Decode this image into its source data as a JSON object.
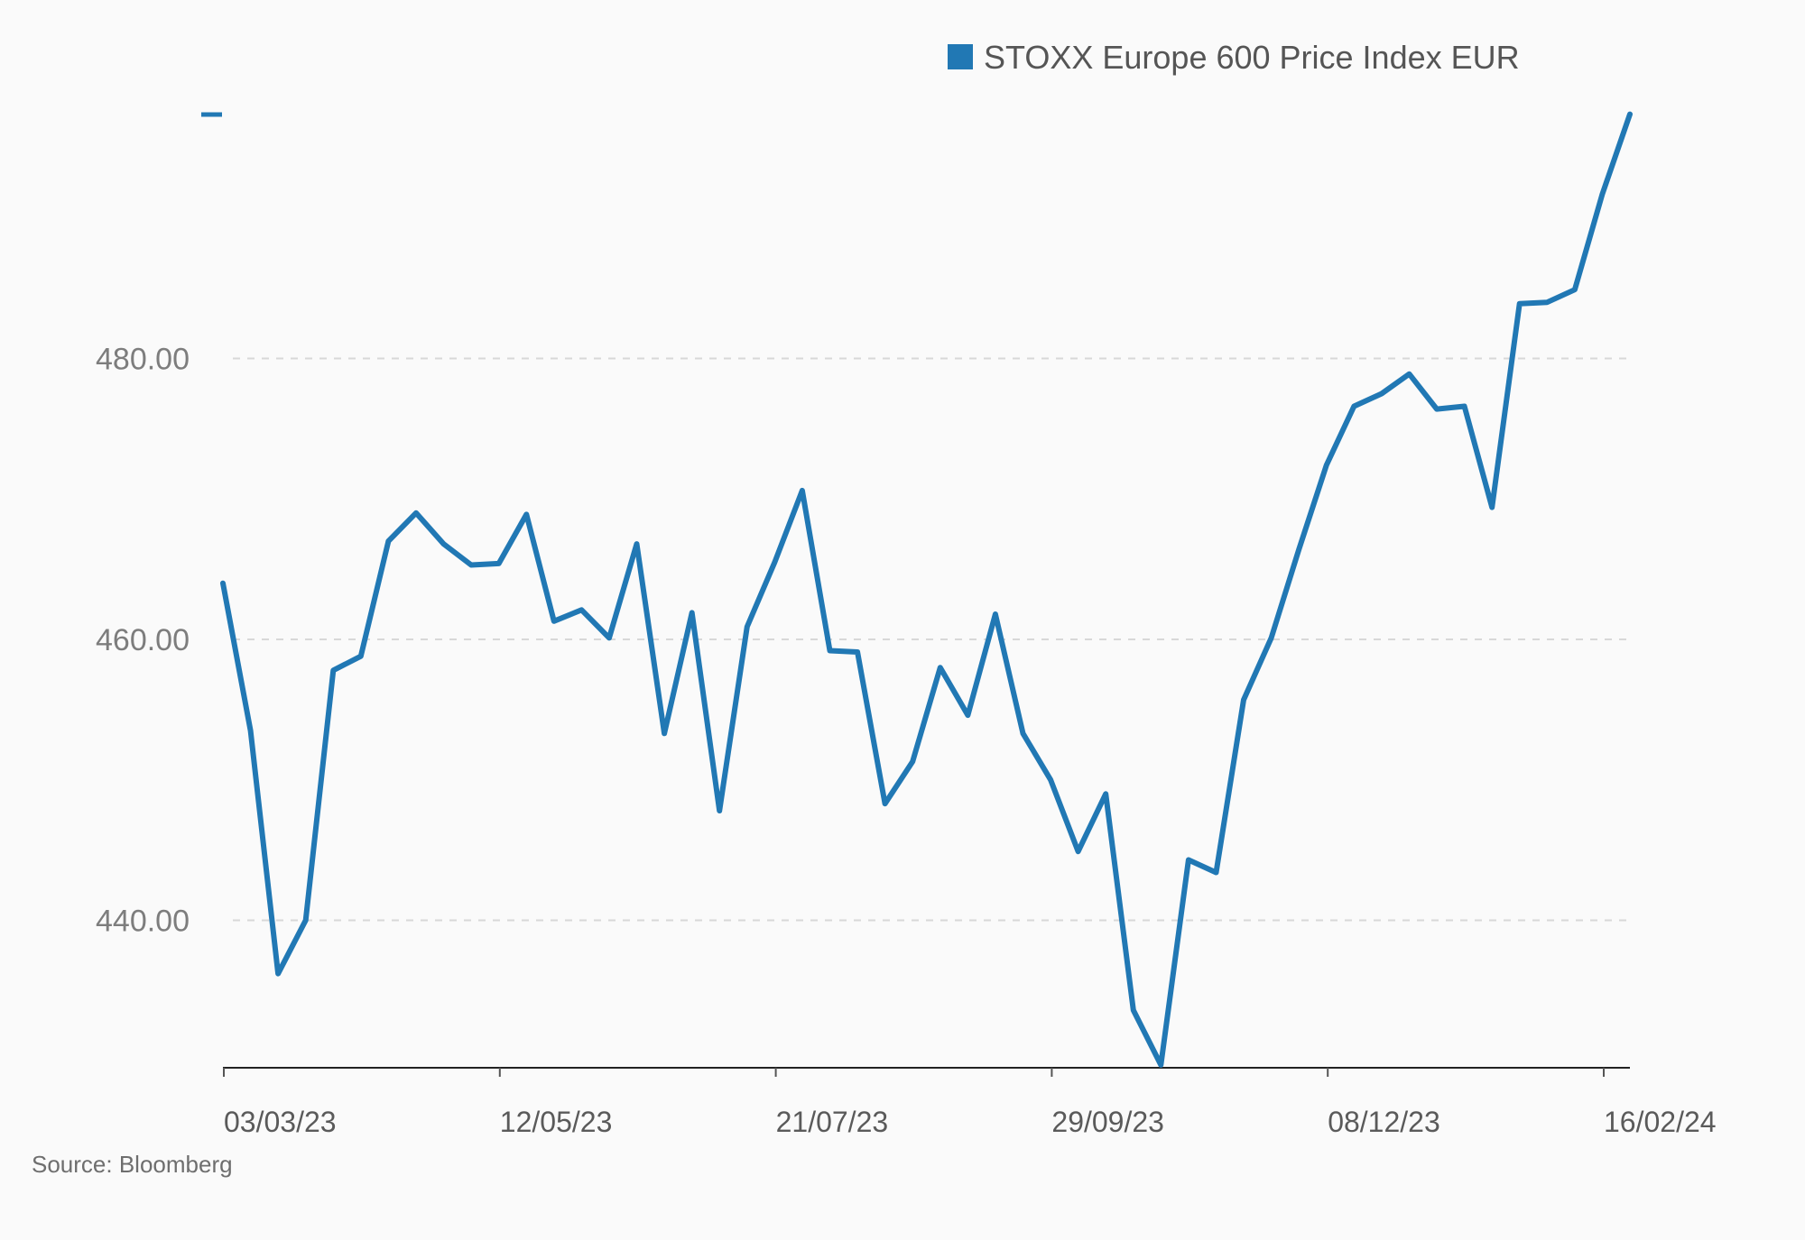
{
  "chart_data": {
    "type": "line",
    "title": "",
    "xlabel": "",
    "ylabel": "",
    "ylim": [
      429.5,
      497.5
    ],
    "yticks": [
      440,
      460,
      480
    ],
    "ytick_labels": [
      "440.00",
      "460.00",
      "480.00"
    ],
    "x_tick_labels": [
      "03/03/23",
      "12/05/23",
      "21/07/23",
      "29/09/23",
      "08/12/23",
      "16/02/24"
    ],
    "grid": true,
    "legend_position": "top-right",
    "series_color": "#2178b4",
    "series": [
      {
        "name": "STOXX Europe 600 Price Index EUR",
        "values": [
          464.0,
          453.5,
          436.2,
          440.0,
          457.8,
          458.8,
          467.0,
          469.0,
          466.8,
          465.3,
          465.4,
          468.9,
          461.3,
          462.1,
          460.1,
          466.8,
          453.3,
          461.9,
          447.8,
          460.9,
          465.5,
          470.6,
          459.2,
          459.1,
          448.3,
          451.3,
          458.0,
          454.6,
          461.8,
          453.3,
          450.0,
          444.9,
          449.0,
          433.6,
          429.7,
          444.3,
          443.4,
          455.7,
          460.1,
          466.4,
          472.4,
          476.6,
          477.5,
          478.9,
          476.4,
          476.6,
          469.4,
          483.9,
          484.0,
          484.9,
          491.7,
          497.4
        ]
      }
    ],
    "source": "Source: Bloomberg"
  }
}
